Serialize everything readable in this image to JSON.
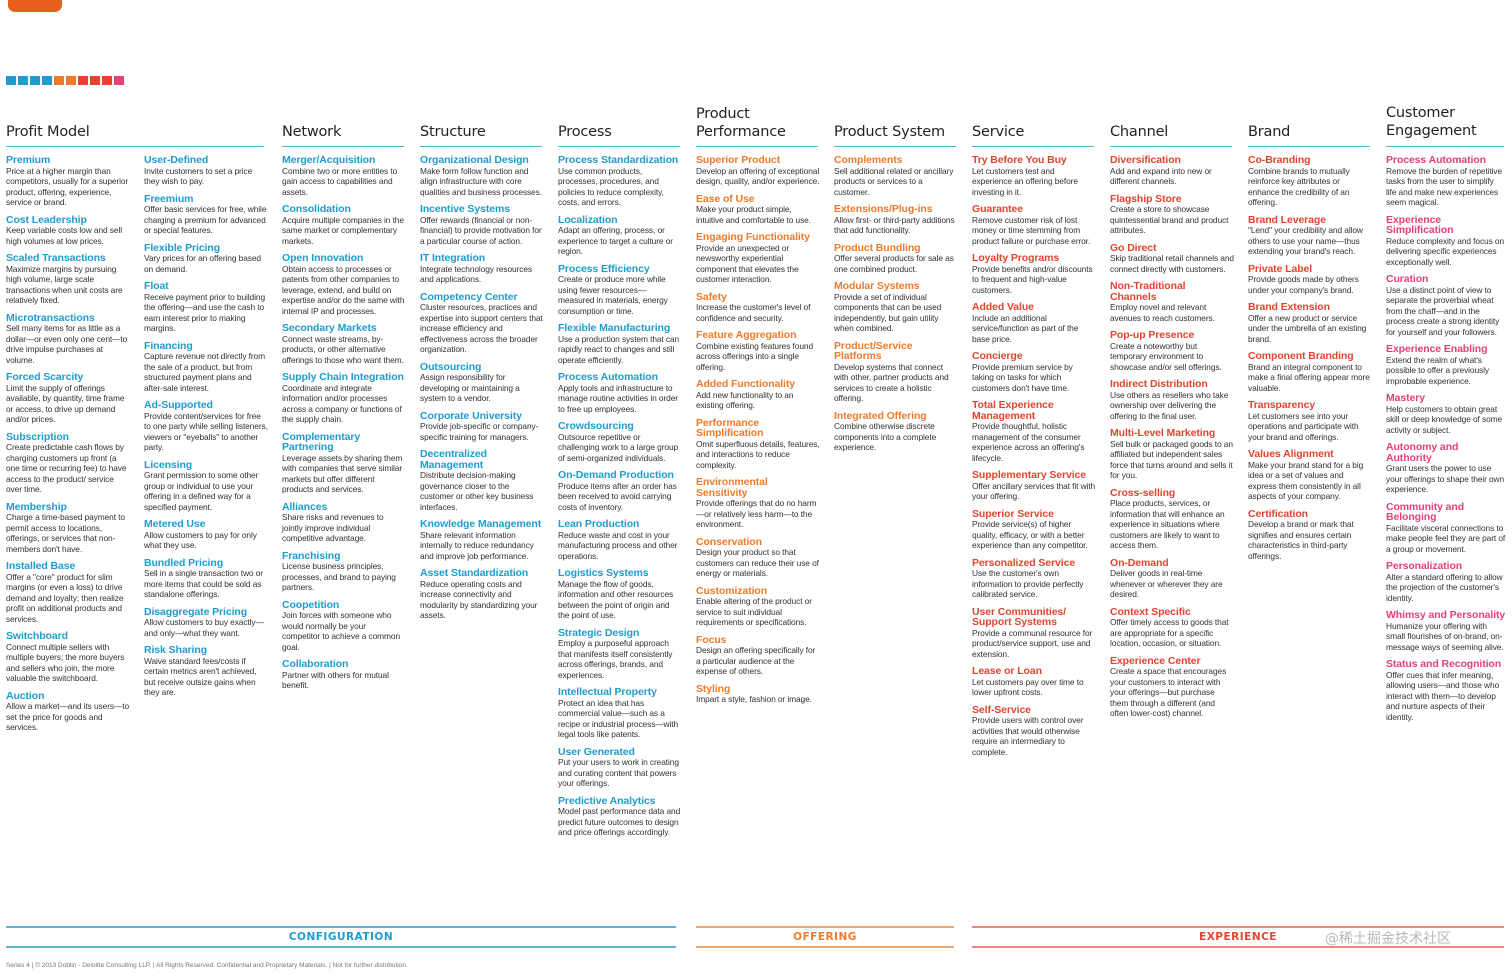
{
  "brand": [
    {
      "name": "Co-Branding",
      "desc": "Combine brands to mutually reinforce key attributes or enhance the credibility of an offering."
    },
    {
      "name": "Brand Leverage",
      "desc": "\"Lend\" your credibility and allow others to use your name—thus extending your brand's reach."
    },
    {
      "name": "Private Label",
      "desc": "Provide goods made by others under your company's brand."
    },
    {
      "name": "Brand Extension",
      "desc": "Offer a new product or service under the umbrella of an existing brand."
    },
    {
      "name": "Component Branding",
      "desc": "Brand an integral component to make a final offering appear more valuable."
    },
    {
      "name": "Transparency",
      "desc": "Let customers see into your operations and participate with your brand and offerings."
    },
    {
      "name": "Values Alignment",
      "desc": "Make your brand stand for a big idea or a set of values and express them consistently in all aspects of your company."
    },
    {
      "name": "Certification",
      "desc": "Develop a brand or mark that signifies and ensures certain characteristics in third-party offerings."
    }
  ],
  "colors": {
    "blue": "#1f9ccf",
    "orange": "#ee7b2b",
    "red": "#e2452f",
    "pink": "#e5407a",
    "rule": "#58b5d6"
  },
  "columns": {
    "profit": {
      "title": "Profit Model"
    },
    "network": {
      "title": "Network"
    },
    "structure": {
      "title": "Structure"
    },
    "process": {
      "title": "Process"
    },
    "product_performance": {
      "title_line1": "Product",
      "title_line2": "Performance"
    },
    "product_system": {
      "title": "Product System"
    },
    "service": {
      "title": "Service"
    },
    "channel": {
      "title": "Channel"
    },
    "brand": {
      "title": "Brand"
    },
    "customer_engagement": {
      "title_line1": "Customer",
      "title_line2": "Engagement"
    }
  },
  "profit_a": [
    {
      "name": "Premium",
      "desc": "Price at a higher margin than competitors, usually for a superior product, offering, experience, service or brand."
    },
    {
      "name": "Cost Leadership",
      "desc": "Keep variable costs low and sell high volumes at low prices."
    },
    {
      "name": "Scaled Transactions",
      "desc": "Maximize margins by pursuing high volume, large scale transactions when unit costs are relatively fixed."
    },
    {
      "name": "Microtransactions",
      "desc": "Sell many items for as little as a dollar—or even only one cent—to drive impulse purchases at volume."
    },
    {
      "name": "Forced Scarcity",
      "desc": "Limit the supply of offerings available, by quantity, time frame or access, to drive up demand and/or prices."
    },
    {
      "name": "Subscription",
      "desc": "Create predictable cash flows by charging customers up front (a one time or recurring fee) to have access to the product/ service over time."
    },
    {
      "name": "Membership",
      "desc": "Charge a time-based payment to permit access to locations, offerings, or services that non-members don't have."
    },
    {
      "name": "Installed Base",
      "desc": "Offer a \"core\" product for slim margins (or even a loss) to drive demand and loyalty; then realize profit on additional products and services."
    },
    {
      "name": "Switchboard",
      "desc": "Connect multiple sellers with multiple buyers; the more buyers and sellers who join, the more valuable the switchboard."
    },
    {
      "name": "Auction",
      "desc": "Allow a market—and its users—to set the price for goods and services."
    }
  ],
  "profit_b": [
    {
      "name": "User-Defined",
      "desc": "Invite customers to set a price they wish to pay."
    },
    {
      "name": "Freemium",
      "desc": "Offer basic services for free, while charging a premium for advanced or special features."
    },
    {
      "name": "Flexible Pricing",
      "desc": "Vary prices for an offering based on demand."
    },
    {
      "name": "Float",
      "desc": "Receive payment prior to building the offering—and use the cash to earn interest prior to making margins."
    },
    {
      "name": "Financing",
      "desc": "Capture revenue not directly from the sale of a product, but from structured payment plans and after-sale interest."
    },
    {
      "name": "Ad-Supported",
      "desc": "Provide content/services for free to one party while selling listeners, viewers or \"eyeballs\" to another party."
    },
    {
      "name": "Licensing",
      "desc": "Grant permission to some other group or individual to use your offering in a defined way for a specified payment."
    },
    {
      "name": "Metered Use",
      "desc": "Allow customers to pay for only what they use."
    },
    {
      "name": "Bundled Pricing",
      "desc": "Sell in a single transaction two or more items that could be sold as standalone offerings."
    },
    {
      "name": "Disaggregate Pricing",
      "desc": "Allow customers to buy exactly—and only—what they want."
    },
    {
      "name": "Risk Sharing",
      "desc": "Waive standard fees/costs if certain metrics aren't achieved, but receive outsize gains when they are."
    }
  ],
  "network": [
    {
      "name": "Merger/Acquisition",
      "desc": "Combine two or more entities to gain access to capabilities and assets."
    },
    {
      "name": "Consolidation",
      "desc": "Acquire multiple companies in the same market or complementary markets."
    },
    {
      "name": "Open Innovation",
      "desc": "Obtain access to processes or patents from other companies to leverage, extend, and build on expertise and/or do the same with internal IP and processes."
    },
    {
      "name": "Secondary Markets",
      "desc": "Connect waste streams, by-products, or other alternative offerings to those who want them."
    },
    {
      "name": "Supply Chain Integration",
      "desc": "Coordinate and integrate information and/or processes across a company or functions of the supply chain."
    },
    {
      "name": "Complementary Partnering",
      "desc": "Leverage assets by sharing them with companies that serve similar markets but offer different products and services."
    },
    {
      "name": "Alliances",
      "desc": "Share risks and revenues to jointly improve individual competitive advantage."
    },
    {
      "name": "Franchising",
      "desc": "License business principles, processes, and brand to paying partners."
    },
    {
      "name": "Coopetition",
      "desc": "Join forces with someone who would normally be your competitor to achieve a common goal."
    },
    {
      "name": "Collaboration",
      "desc": "Partner with others for mutual benefit."
    }
  ],
  "structure": [
    {
      "name": "Organizational Design",
      "desc": "Make form follow function and align infrastructure with core qualities and business processes."
    },
    {
      "name": "Incentive Systems",
      "desc": "Offer rewards (financial or non-financial) to provide motivation for a particular course of action."
    },
    {
      "name": "IT Integration",
      "desc": "Integrate technology resources and applications."
    },
    {
      "name": "Competency Center",
      "desc": "Cluster resources, practices and expertise into support centers that increase efficiency and effectiveness across the broader organization."
    },
    {
      "name": "Outsourcing",
      "desc": "Assign responsibility for developing or maintaining a system to a vendor."
    },
    {
      "name": "Corporate University",
      "desc": "Provide job-specific or company-specific training for managers."
    },
    {
      "name": "Decentralized Management",
      "desc": "Distribute decision-making governance closer to the customer or other key business interfaces."
    },
    {
      "name": "Knowledge Management",
      "desc": "Share relevant information internally to reduce redundancy and improve job performance."
    },
    {
      "name": "Asset Standardization",
      "desc": "Reduce operating costs and increase connectivity and modularity by standardizing your assets."
    }
  ],
  "process": [
    {
      "name": "Process Standardization",
      "desc": "Use common products, processes, procedures, and policies to reduce complexity, costs, and errors."
    },
    {
      "name": "Localization",
      "desc": "Adapt an offering, process, or experience to target a culture or region."
    },
    {
      "name": "Process Efficiency",
      "desc": "Create or produce more while using fewer resources—measured in materials, energy consumption or time."
    },
    {
      "name": "Flexible Manufacturing",
      "desc": "Use a production system that can rapidly react to changes and still operate efficiently."
    },
    {
      "name": "Process Automation",
      "desc": "Apply tools and infrastructure to manage routine activities in order to free up employees."
    },
    {
      "name": "Crowdsourcing",
      "desc": "Outsource repetitive or challenging work to a large group of semi-organized individuals."
    },
    {
      "name": "On-Demand Production",
      "desc": "Produce items after an order has been received to avoid carrying costs of inventory."
    },
    {
      "name": "Lean Production",
      "desc": "Reduce waste and cost in your manufacturing process and other operations."
    },
    {
      "name": "Logistics Systems",
      "desc": "Manage the flow of goods, information and other resources between the point of origin and the point of use."
    },
    {
      "name": "Strategic Design",
      "desc": "Employ a purposeful approach that manifests itself consistently across offerings, brands, and experiences."
    },
    {
      "name": "Intellectual Property",
      "desc": "Protect an idea that has commercial value—such as a recipe or industrial process—with legal tools like patents."
    },
    {
      "name": "User Generated",
      "desc": "Put your users to work in creating and curating content that powers your offerings."
    },
    {
      "name": "Predictive Analytics",
      "desc": "Model past performance data and predict future outcomes to design and price offerings accordingly."
    }
  ],
  "product_performance": [
    {
      "name": "Superior Product",
      "desc": "Develop an offering of exceptional design, quality, and/or experience."
    },
    {
      "name": "Ease of Use",
      "desc": "Make your product simple, intuitive and comfortable to use."
    },
    {
      "name": "Engaging Functionality",
      "desc": "Provide an unexpected or newsworthy experiential component that elevates the customer interaction."
    },
    {
      "name": "Safety",
      "desc": "Increase the customer's level of confidence and security."
    },
    {
      "name": "Feature Aggregation",
      "desc": "Combine existing features found across offerings into a single offering."
    },
    {
      "name": "Added Functionality",
      "desc": "Add new functionality to an existing offering."
    },
    {
      "name": "Performance Simplification",
      "desc": "Omit superfluous details, features, and interactions to reduce complexity."
    },
    {
      "name": "Environmental Sensitivity",
      "desc": "Provide offerings that do no harm—or relatively less harm—to the environment."
    },
    {
      "name": "Conservation",
      "desc": "Design your product so that customers can reduce their use of energy or materials."
    },
    {
      "name": "Customization",
      "desc": "Enable altering of the product or service to suit individual requirements or specifications."
    },
    {
      "name": "Focus",
      "desc": "Design an offering specifically for a particular audience at the expense of others."
    },
    {
      "name": "Styling",
      "desc": "Impart a style, fashion or image."
    }
  ],
  "product_system": [
    {
      "name": "Complements",
      "desc": "Sell additional related or ancillary products or services to a customer."
    },
    {
      "name": "Extensions/Plug-ins",
      "desc": "Allow first- or third-party additions that add functionality."
    },
    {
      "name": "Product Bundling",
      "desc": "Offer several products for sale as one combined product."
    },
    {
      "name": "Modular Systems",
      "desc": "Provide a set of individual components that can be used independently, but gain utility when combined."
    },
    {
      "name": "Product/Service Platforms",
      "desc": "Develop systems that connect with other, partner products and services to create a holistic offering."
    },
    {
      "name": "Integrated Offering",
      "desc": "Combine otherwise discrete components into a complete experience."
    }
  ],
  "service": [
    {
      "name": "Try Before You Buy",
      "desc": "Let customers test and experience an offering before investing in it."
    },
    {
      "name": "Guarantee",
      "desc": "Remove customer risk of lost money or time stemming from product failure or purchase error."
    },
    {
      "name": "Loyalty Programs",
      "desc": "Provide benefits and/or discounts to frequent and high-value customers."
    },
    {
      "name": "Added Value",
      "desc": "Include an additional service/function as part of the base price."
    },
    {
      "name": "Concierge",
      "desc": "Provide premium service by taking on tasks for which customers don't have time."
    },
    {
      "name": "Total Experience Management",
      "desc": "Provide thoughtful, holistic management of the consumer experience across an offering's lifecycle."
    },
    {
      "name": "Supplementary Service",
      "desc": "Offer ancillary services that fit with your offering."
    },
    {
      "name": "Superior Service",
      "desc": "Provide service(s) of higher quality, efficacy, or with a better experience than any competitor."
    },
    {
      "name": "Personalized Service",
      "desc": "Use the customer's own information to provide perfectly calibrated service."
    },
    {
      "name": "User Communities/ Support Systems",
      "desc": "Provide a communal resource for product/service support, use and extension."
    },
    {
      "name": "Lease or Loan",
      "desc": "Let customers pay over time to lower upfront costs."
    },
    {
      "name": "Self-Service",
      "desc": "Provide users with control over activities that would otherwise require an intermediary to complete."
    }
  ],
  "channel": [
    {
      "name": "Diversification",
      "desc": "Add and expand into new or different channels."
    },
    {
      "name": "Flagship Store",
      "desc": "Create a store to showcase quintessential brand and product attributes."
    },
    {
      "name": "Go Direct",
      "desc": "Skip traditional retail channels and connect directly with customers."
    },
    {
      "name": "Non-Traditional Channels",
      "desc": "Employ novel and relevant avenues to reach customers."
    },
    {
      "name": "Pop-up Presence",
      "desc": "Create a noteworthy but temporary environment to showcase and/or sell offerings."
    },
    {
      "name": "Indirect Distribution",
      "desc": "Use others as resellers who take ownership over delivering the offering to the final user."
    },
    {
      "name": "Multi-Level Marketing",
      "desc": "Sell bulk or packaged goods to an affiliated but independent sales force that turns around and sells it for you."
    },
    {
      "name": "Cross-selling",
      "desc": "Place products, services, or information that will enhance an experience in situations where customers are likely to want to access them."
    },
    {
      "name": "On-Demand",
      "desc": "Deliver goods in real-time whenever or wherever they are desired."
    },
    {
      "name": "Context Specific",
      "desc": "Offer timely access to goods that are appropriate for a specific location, occasion, or situation."
    },
    {
      "name": "Experience Center",
      "desc": "Create a space that encourages your customers to interact with your offerings—but purchase them through a different (and often lower-cost) channel."
    }
  ],
  "customer_engagement": [
    {
      "name": "Process Automation",
      "desc": "Remove the burden of repetitive tasks from the user to simplify life and make new experiences seem magical."
    },
    {
      "name": "Experience Simplification",
      "desc": "Reduce complexity and focus on delivering specific experiences exceptionally well."
    },
    {
      "name": "Curation",
      "desc": "Use a distinct point of view to separate the proverbial wheat from the chaff—and in the process create a strong identity for yourself and your followers."
    },
    {
      "name": "Experience Enabling",
      "desc": "Extend the realm of what's possible to offer a previously improbable experience."
    },
    {
      "name": "Mastery",
      "desc": "Help customers to obtain great skill or deep knowledge of some activity or subject."
    },
    {
      "name": "Autonomy and Authority",
      "desc": "Grant users the power to use your offerings to shape their own experience."
    },
    {
      "name": "Community and Belonging",
      "desc": "Facilitate visceral connections to make people feel they are part of a group or movement."
    },
    {
      "name": "Personalization",
      "desc": "Alter a standard offering to allow the projection of the customer's identity."
    },
    {
      "name": "Whimsy and Personality",
      "desc": "Humanize your offering with small flourishes of on-brand, on-message ways of seeming alive."
    },
    {
      "name": "Status and Recognition",
      "desc": "Offer cues that infer meaning, allowing users—and those who interact with them—to develop and nurture aspects of their identity."
    }
  ],
  "categories": {
    "configuration": "CONFIGURATION",
    "offering": "OFFERING",
    "experience": "EXPERIENCE"
  },
  "footer": "Series 4  |  © 2013 Doblin - Deloitte Consulting LLP.  |  All Rights Reserved. Confidential and Proprietary Materials.  |  Not for further distribution.",
  "watermark": "@稀土掘金技术社区"
}
